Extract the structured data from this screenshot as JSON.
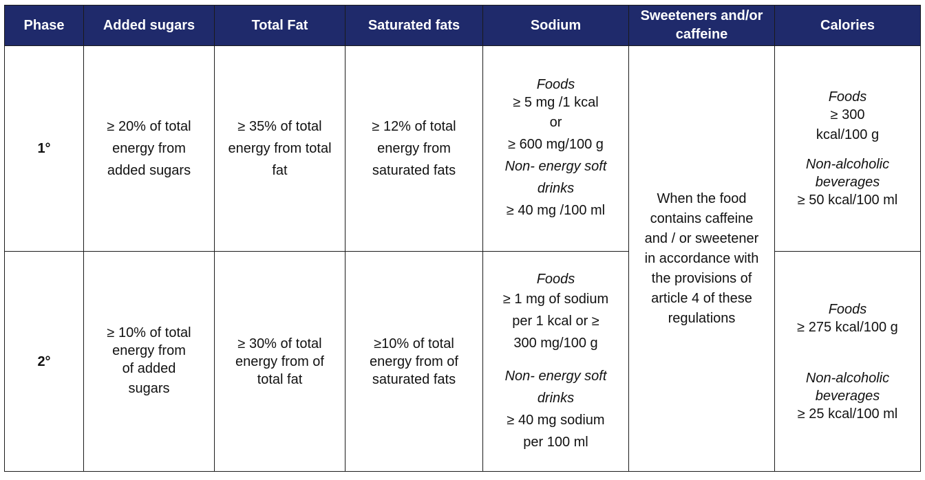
{
  "headers": {
    "phase": "Phase",
    "added_sugars": "Added sugars",
    "total_fat": "Total Fat",
    "saturated_fats": "Saturated fats",
    "sodium": "Sodium",
    "sweeteners_line1": "Sweeteners",
    "sweeteners_line2": "and/or caffeine",
    "calories": "Calories"
  },
  "rows": [
    {
      "phase": "1°",
      "added_sugars": [
        "≥ 20% of total",
        "energy from",
        "added sugars"
      ],
      "total_fat": [
        "≥ 35% of total",
        "energy from total",
        "fat"
      ],
      "saturated_fats": [
        "≥ 12% of total",
        "energy from",
        "saturated fats"
      ],
      "sodium": {
        "foods_label": "Foods",
        "foods": [
          "≥ 5 mg /1 kcal",
          "or",
          "≥ 600 mg/100 g"
        ],
        "drinks_label": [
          "Non- energy soft",
          "drinks"
        ],
        "drinks": [
          "≥ 40 mg /100 ml"
        ]
      },
      "calories": {
        "foods_label": "Foods",
        "foods": [
          "≥ 300",
          "kcal/100 g"
        ],
        "bev_label": [
          "Non-alcoholic",
          "beverages"
        ],
        "bev": [
          "≥ 50 kcal/100 ml"
        ]
      }
    },
    {
      "phase": "2°",
      "added_sugars": [
        "≥ 10% of total",
        "energy from",
        "of added",
        "sugars"
      ],
      "total_fat": [
        "≥ 30% of total",
        "energy from of",
        "total fat"
      ],
      "saturated_fats": [
        "≥10% of total",
        "energy from of",
        "saturated fats"
      ],
      "sodium": {
        "foods_label": "Foods",
        "foods": [
          "≥ 1 mg of sodium",
          "per 1 kcal or ≥",
          "300 mg/100 g"
        ],
        "drinks_label": [
          "Non- energy soft",
          "drinks"
        ],
        "drinks": [
          "≥ 40 mg sodium",
          "per 100 ml"
        ]
      },
      "calories": {
        "foods_label": "Foods",
        "foods": [
          "≥ 275 kcal/100 g"
        ],
        "bev_label": [
          "Non-alcoholic",
          "beverages"
        ],
        "bev": [
          "≥ 25 kcal/100 ml"
        ]
      }
    }
  ],
  "sweeteners_text": [
    "When the food",
    "contains caffeine",
    "and / or sweetener",
    "in accordance with",
    "the provisions of",
    "article 4 of these",
    "regulations"
  ]
}
